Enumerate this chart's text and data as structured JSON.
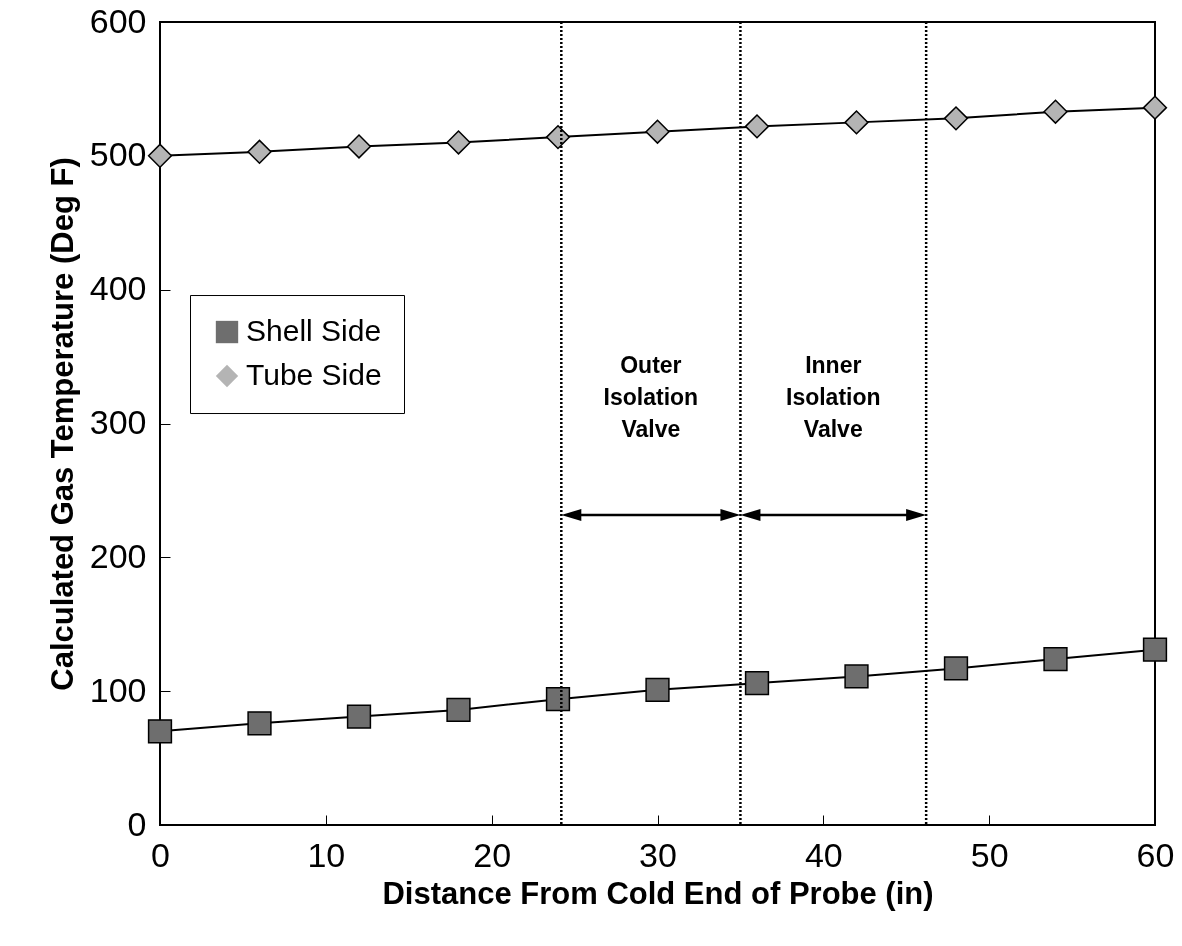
{
  "chart_data": {
    "type": "line",
    "xlabel": "Distance From Cold End of Probe (in)",
    "ylabel": "Calculated Gas Temperature (Deg F)",
    "x": [
      0,
      6,
      12,
      18,
      24,
      30,
      36,
      42,
      48,
      54,
      60
    ],
    "series": [
      {
        "name": "Shell Side",
        "color": "#6e6e6e",
        "marker": "square",
        "values": [
          70,
          76,
          81,
          86,
          94,
          101,
          106,
          111,
          117,
          124,
          131
        ]
      },
      {
        "name": "Tube Side",
        "color": "#b4b4b4",
        "marker": "diamond",
        "values": [
          500,
          503,
          507,
          510,
          514,
          518,
          522,
          525,
          528,
          533,
          536
        ]
      }
    ],
    "xlim": [
      0,
      60
    ],
    "xticks": [
      0,
      10,
      20,
      30,
      40,
      50,
      60
    ],
    "ylim": [
      0,
      600
    ],
    "yticks": [
      0,
      100,
      200,
      300,
      400,
      500,
      600
    ],
    "ref_lines": [
      {
        "axis": "x",
        "value": 24.2,
        "line_style": "dotted"
      },
      {
        "axis": "x",
        "value": 35,
        "line_style": "dotted"
      },
      {
        "axis": "x",
        "value": 46.2,
        "line_style": "dotted"
      }
    ],
    "annotations": [
      "Outer Isolation Valve",
      "Inner Isolation Valve"
    ],
    "legend": "left",
    "grid": false
  }
}
